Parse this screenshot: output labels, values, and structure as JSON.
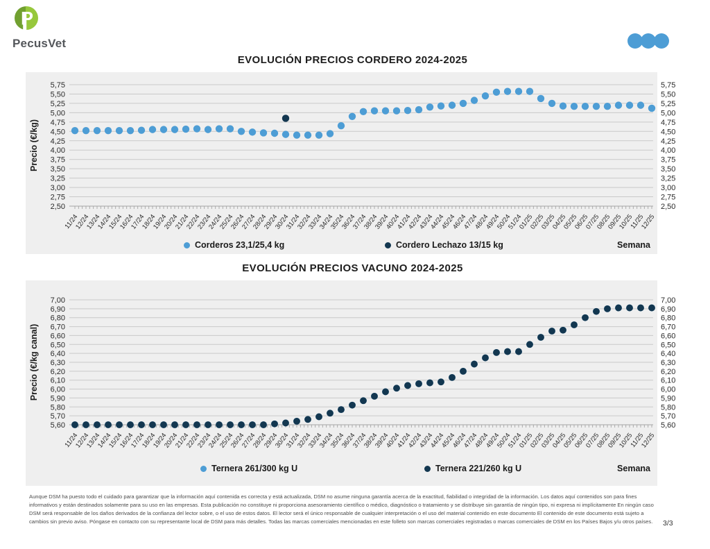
{
  "header": {
    "logo": {
      "text": "PecusVet",
      "icon_letter": "P",
      "green_dark": "#71A030",
      "green_light": "#97C83C",
      "text_color": "#54575b"
    },
    "dots_color": "#4D9DD5"
  },
  "colors": {
    "panel_bg": "#EFEFEF",
    "gridline": "#C9C9C9",
    "axis": "#A5A5A5",
    "tick_text": "#2a2a2a",
    "series_light_blue": "#4D9DD5",
    "series_navy": "#133750"
  },
  "chart_data": [
    {
      "type": "scatter",
      "title": "EVOLUCIÓN PRECIOS CORDERO 2024-2025",
      "ylabel": "Precio (€/kg)",
      "xlabel": "Semana",
      "ylim": [
        2.5,
        5.75
      ],
      "ytick_step": 0.25,
      "grid": true,
      "legend_position": "bottom-inside",
      "categories": [
        "11/24",
        "12/24",
        "13/24",
        "14/24",
        "15/24",
        "16/24",
        "17/24",
        "18/24",
        "19/24",
        "20/24",
        "21/24",
        "22/24",
        "23/24",
        "24/24",
        "25/24",
        "26/24",
        "27/24",
        "28/24",
        "29/24",
        "30/24",
        "31/24",
        "32/24",
        "33/24",
        "34/24",
        "35/24",
        "36/24",
        "37/24",
        "38/24",
        "39/24",
        "40/24",
        "41/24",
        "42/24",
        "43/24",
        "44/24",
        "45/24",
        "46/24",
        "47/24",
        "48/24",
        "49/24",
        "50/24",
        "51/24",
        "01/25",
        "02/25",
        "03/25",
        "04/25",
        "05/25",
        "06/25",
        "07/25",
        "08/25",
        "09/25",
        "10/25",
        "11/25",
        "12/25"
      ],
      "series": [
        {
          "name": "Corderos 23,1/25,4 kg",
          "color": "#4D9DD5",
          "values": [
            4.52,
            4.52,
            4.52,
            4.52,
            4.52,
            4.52,
            4.53,
            4.55,
            4.55,
            4.55,
            4.56,
            4.57,
            4.55,
            4.57,
            4.57,
            4.5,
            4.48,
            4.46,
            4.45,
            4.42,
            4.4,
            4.4,
            4.4,
            4.44,
            4.65,
            4.9,
            5.03,
            5.05,
            5.05,
            5.05,
            5.06,
            5.08,
            5.15,
            5.18,
            5.2,
            5.25,
            5.33,
            5.45,
            5.55,
            5.57,
            5.57,
            5.57,
            5.38,
            5.25,
            5.18,
            5.17,
            5.17,
            5.17,
            5.17,
            5.2,
            5.2,
            5.2,
            5.12
          ]
        },
        {
          "name": "Cordero Lechazo 13/15 kg",
          "color": "#133750",
          "points": {
            "30/24": 4.85
          }
        }
      ]
    },
    {
      "type": "scatter",
      "title": "EVOLUCIÓN PRECIOS VACUNO 2024-2025",
      "ylabel": "Precio (€/kg canal)",
      "xlabel": "Semana",
      "ylim": [
        5.6,
        7.0
      ],
      "ytick_step": 0.1,
      "grid": true,
      "legend_position": "bottom-inside",
      "categories": [
        "11/24",
        "12/24",
        "13/24",
        "14/24",
        "15/24",
        "16/24",
        "17/24",
        "18/24",
        "19/24",
        "20/24",
        "21/24",
        "22/24",
        "23/24",
        "24/24",
        "25/24",
        "26/24",
        "27/24",
        "28/24",
        "29/24",
        "30/24",
        "31/24",
        "32/24",
        "33/24",
        "34/24",
        "35/24",
        "36/24",
        "37/24",
        "38/24",
        "39/24",
        "40/24",
        "41/24",
        "42/24",
        "43/24",
        "44/24",
        "45/24",
        "46/24",
        "47/24",
        "48/24",
        "49/24",
        "50/24",
        "51/24",
        "01/25",
        "02/25",
        "03/25",
        "04/25",
        "05/25",
        "06/25",
        "07/25",
        "08/25",
        "09/25",
        "10/25",
        "11/25",
        "12/25"
      ],
      "series": [
        {
          "name": "Ternera 261/300 kg U",
          "color": "#4D9DD5",
          "values": [
            5.6,
            5.6,
            5.6,
            5.6,
            5.6,
            5.6,
            5.6,
            5.6,
            5.6,
            5.6,
            5.6,
            5.6,
            5.6,
            5.6,
            5.6,
            5.6,
            5.6,
            5.6,
            5.61,
            5.62,
            5.64,
            5.66,
            5.69,
            5.73,
            5.77,
            5.82,
            5.87,
            5.92,
            5.97,
            6.01,
            6.04,
            6.06,
            6.07,
            6.08,
            6.13,
            6.2,
            6.28,
            6.35,
            6.41,
            6.42,
            6.42,
            6.5,
            6.58,
            6.65,
            6.66,
            6.72,
            6.8,
            6.87,
            6.9,
            6.91,
            6.91,
            6.91,
            6.91
          ]
        },
        {
          "name": "Ternera 221/260 kg U",
          "color": "#133750",
          "values": [
            5.6,
            5.6,
            5.6,
            5.6,
            5.6,
            5.6,
            5.6,
            5.6,
            5.6,
            5.6,
            5.6,
            5.6,
            5.6,
            5.6,
            5.6,
            5.6,
            5.6,
            5.6,
            5.61,
            5.62,
            5.64,
            5.66,
            5.69,
            5.73,
            5.77,
            5.82,
            5.87,
            5.92,
            5.97,
            6.01,
            6.04,
            6.06,
            6.07,
            6.08,
            6.13,
            6.2,
            6.28,
            6.35,
            6.41,
            6.42,
            6.42,
            6.5,
            6.58,
            6.65,
            6.66,
            6.72,
            6.8,
            6.87,
            6.9,
            6.91,
            6.91,
            6.91,
            6.91
          ]
        }
      ]
    }
  ],
  "footer": {
    "disclaimer": "Aunque DSM ha puesto todo el cuidado para garantizar que la información aquí contenida es correcta y está actualizada, DSM no asume ninguna garantía acerca de la exactitud, fiabilidad o integridad de la información. Los datos aquí contenidos son para fines informativos y están destinados solamente para su uso en las empresas. Esta publicación no constituye ni proporciona asesoramiento científico o médico, diagnóstico o tratamiento y se distribuye sin garantía de ningún tipo, ni expresa ni implícitamente En ningún caso DSM será responsable de los daños derivados de la confianza del lector sobre, o el uso de estos datos. El lector será el único responsable de cualquier interpretación o el uso del material contenido en este documento El contenido de este documento está sujeto a cambios sin previo aviso. Póngase en contacto con su representante local de DSM para más detalles. Todas las marcas comerciales mencionadas en este folleto son marcas comerciales registradas o marcas comerciales de DSM en los Países Bajos y/u otros países.",
    "page_number": "3/3"
  }
}
